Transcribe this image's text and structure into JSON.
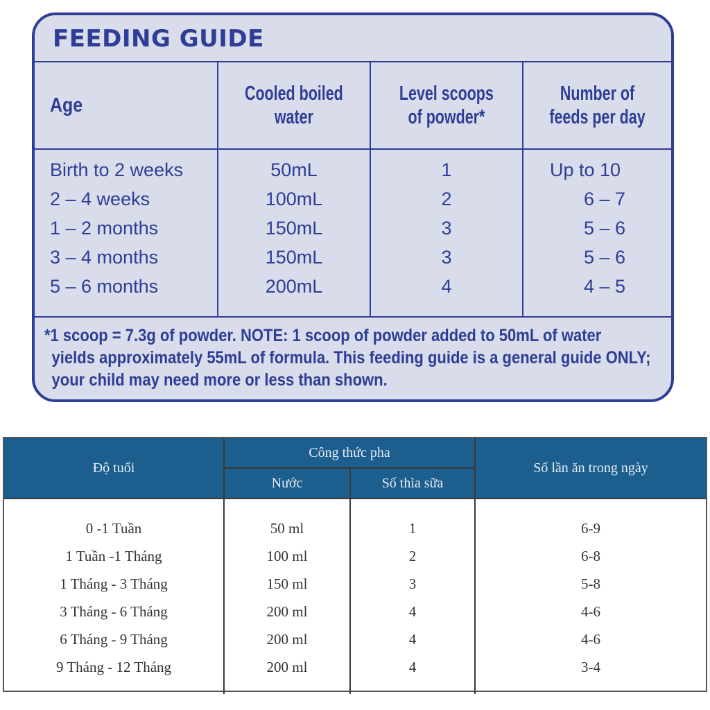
{
  "feeding_guide": {
    "title": "FEEDING GUIDE",
    "headers": {
      "age": "Age",
      "water_line1": "Cooled boiled",
      "water_line2": "water",
      "scoops_line1": "Level scoops",
      "scoops_line2": "of powder*",
      "feeds_line1": "Number of",
      "feeds_line2": "feeds per day"
    },
    "rows": [
      {
        "age": "Birth to 2 weeks",
        "water": "50mL",
        "scoops": "1",
        "feeds": "Up to 10"
      },
      {
        "age": "2 – 4 weeks",
        "water": "100mL",
        "scoops": "2",
        "feeds": "6 – 7"
      },
      {
        "age": "1 – 2 months",
        "water": "150mL",
        "scoops": "3",
        "feeds": "5 – 6"
      },
      {
        "age": "3 – 4 months",
        "water": "150mL",
        "scoops": "3",
        "feeds": "5 – 6"
      },
      {
        "age": "5 – 6 months",
        "water": "200mL",
        "scoops": "4",
        "feeds": "4 – 5"
      }
    ],
    "note_line1": "*1 scoop = 7.3g of powder. NOTE: 1 scoop of powder added to 50mL of water",
    "note_line2": "yields approximately 55mL of formula. This feeding guide is a general guide ONLY;",
    "note_line3": "your child may need more or less than shown."
  },
  "vn_table": {
    "headers": {
      "age": "Độ tuổi",
      "group": "Công thức pha",
      "water": "Nước",
      "scoops": "Số thìa sữa",
      "feeds": "Số lần ăn trong ngày"
    },
    "rows": [
      {
        "age": "0 -1 Tuần",
        "water": "50 ml",
        "scoops": "1",
        "feeds": "6-9"
      },
      {
        "age": "1 Tuần -1 Tháng",
        "water": "100 ml",
        "scoops": "2",
        "feeds": "6-8"
      },
      {
        "age": "1 Tháng - 3 Tháng",
        "water": "150 ml",
        "scoops": "3",
        "feeds": "5-8"
      },
      {
        "age": "3 Tháng - 6 Tháng",
        "water": "200 ml",
        "scoops": "4",
        "feeds": "4-6"
      },
      {
        "age": "6 Tháng - 9 Tháng",
        "water": "200 ml",
        "scoops": "4",
        "feeds": "4-6"
      },
      {
        "age": "9 Tháng - 12 Tháng",
        "water": "200 ml",
        "scoops": "4",
        "feeds": "3-4"
      }
    ]
  },
  "colors": {
    "guide_blue": "#2e3d95",
    "guide_background": "#d9dcea",
    "vn_header_blue": "#1c5e8d"
  }
}
